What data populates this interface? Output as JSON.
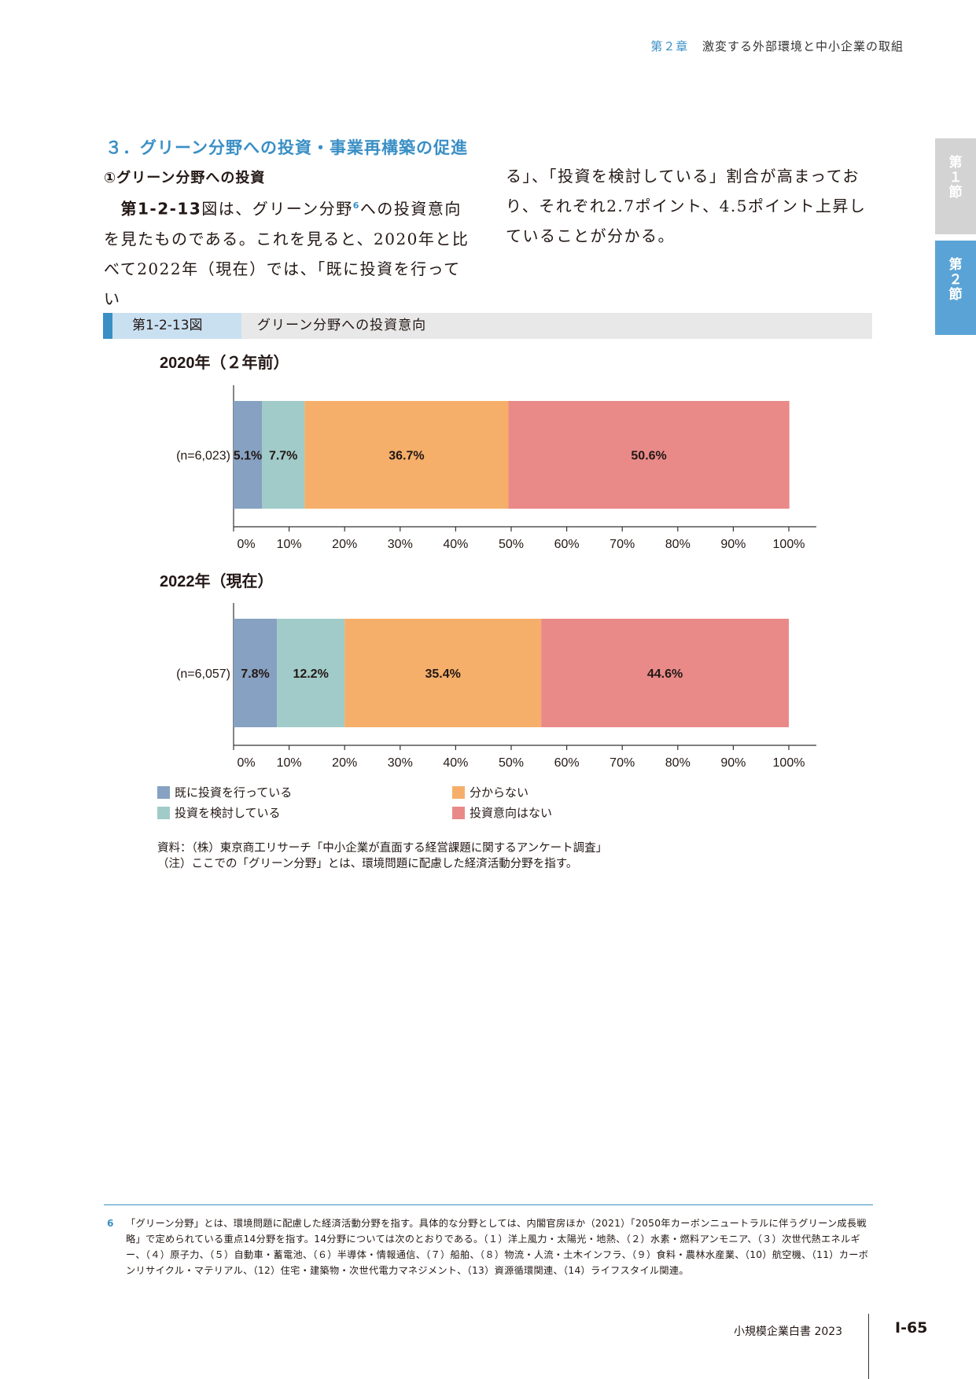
{
  "header": {
    "chapter": "第２章",
    "title": "激変する外部環境と中小企業の取組"
  },
  "side_tabs": [
    {
      "label": "第\n１\n節"
    },
    {
      "label": "第\n２\n節"
    }
  ],
  "section_title": "３．グリーン分野への投資・事業再構築の促進",
  "subsection_title": "①グリーン分野への投資",
  "body": {
    "p1_ref": "第1-2-13",
    "p1_a": "図は、グリーン分野",
    "p1_sup": "6",
    "p1_b": "への投資意向を見たものである。これを見ると、2020年と比べて2022年（現在）では、「既に投資を行ってい",
    "p2": "る」、「投資を検討している」割合が高まっており、それぞれ2.7ポイント、4.5ポイント上昇していることが分かる。"
  },
  "figure": {
    "number": "第1-2-13図",
    "caption": "グリーン分野への投資意向"
  },
  "chart_data": [
    {
      "type": "bar",
      "orientation": "horizontal",
      "stacked": true,
      "title": "2020年（２年前）",
      "categories": [
        "(n=6,023)"
      ],
      "series": [
        {
          "name": "既に投資を行っている",
          "values": [
            5.1
          ],
          "label": "5.1%",
          "color": "#86a1c1"
        },
        {
          "name": "投資を検討している",
          "values": [
            7.7
          ],
          "label": "7.7%",
          "color": "#a1cbc9"
        },
        {
          "name": "分からない",
          "values": [
            36.7
          ],
          "label": "36.7%",
          "color": "#f5af6a"
        },
        {
          "name": "投資意向はない",
          "values": [
            50.6
          ],
          "label": "50.6%",
          "color": "#e98a89"
        }
      ],
      "xlim": [
        0,
        100
      ],
      "ticks": [
        "0%",
        "10%",
        "20%",
        "30%",
        "40%",
        "50%",
        "60%",
        "70%",
        "80%",
        "90%",
        "100%"
      ]
    },
    {
      "type": "bar",
      "orientation": "horizontal",
      "stacked": true,
      "title": "2022年（現在）",
      "categories": [
        "(n=6,057)"
      ],
      "series": [
        {
          "name": "既に投資を行っている",
          "values": [
            7.8
          ],
          "label": "7.8%",
          "color": "#86a1c1"
        },
        {
          "name": "投資を検討している",
          "values": [
            12.2
          ],
          "label": "12.2%",
          "color": "#a1cbc9"
        },
        {
          "name": "分からない",
          "values": [
            35.4
          ],
          "label": "35.4%",
          "color": "#f5af6a"
        },
        {
          "name": "投資意向はない",
          "values": [
            44.6
          ],
          "label": "44.6%",
          "color": "#e98a89"
        }
      ],
      "xlim": [
        0,
        100
      ],
      "ticks": [
        "0%",
        "10%",
        "20%",
        "30%",
        "40%",
        "50%",
        "60%",
        "70%",
        "80%",
        "90%",
        "100%"
      ]
    }
  ],
  "legend": [
    {
      "label": "既に投資を行っている",
      "color": "#86a1c1"
    },
    {
      "label": "投資を検討している",
      "color": "#a1cbc9"
    },
    {
      "label": "分からない",
      "color": "#f5af6a"
    },
    {
      "label": "投資意向はない",
      "color": "#e98a89"
    }
  ],
  "source": "資料：（株）東京商工リサーチ「中小企業が直面する経営課題に関するアンケート調査」",
  "note": "（注）ここでの「グリーン分野」とは、環境問題に配慮した経済活動分野を指す。",
  "footnote": {
    "number": "6",
    "text": "「グリーン分野」とは、環境問題に配慮した経済活動分野を指す。具体的な分野としては、内閣官房ほか（2021）「2050年カーボンニュートラルに伴うグリーン成長戦略」で定められている重点14分野を指す。14分野については次のとおりである。（１）洋上風力・太陽光・地熱、（２）水素・燃料アンモニア、（３）次世代熱エネルギー、（４）原子力、（５）自動車・蓄電池、（６）半導体・情報通信、（７）船舶、（８）物流・人流・土木インフラ、（９）食料・農林水産業、（10）航空機、（11）カーボンリサイクル・マテリアル、（12）住宅・建築物・次世代電力マネジメント、（13）資源循環関連、（14）ライフスタイル関連。"
  },
  "footer": {
    "book": "小規模企業白書 2023",
    "page": "Ⅰ-65"
  }
}
